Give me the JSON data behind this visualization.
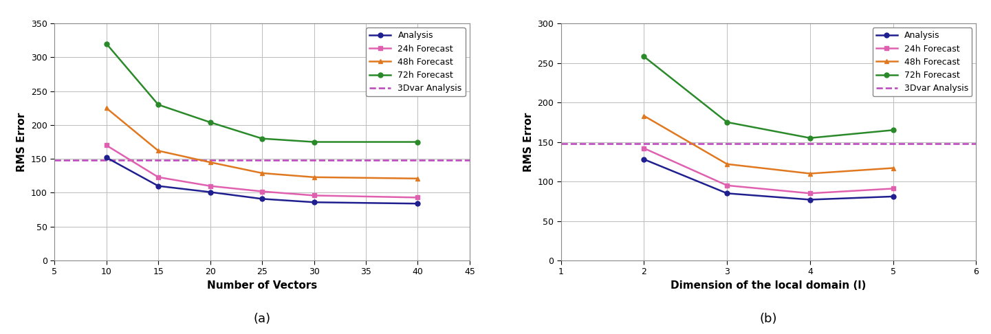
{
  "plot_a": {
    "x": [
      10,
      15,
      20,
      25,
      30,
      40
    ],
    "analysis": [
      152,
      110,
      101,
      91,
      86,
      84
    ],
    "forecast_24h": [
      170,
      123,
      110,
      102,
      96,
      93
    ],
    "forecast_48h": [
      225,
      162,
      145,
      129,
      123,
      121
    ],
    "forecast_72h": [
      320,
      230,
      204,
      180,
      175,
      175
    ],
    "dvar_line": 148,
    "xlim": [
      5,
      45
    ],
    "ylim": [
      0,
      350
    ],
    "xticks": [
      5,
      10,
      15,
      20,
      25,
      30,
      35,
      40,
      45
    ],
    "yticks": [
      0,
      50,
      100,
      150,
      200,
      250,
      300,
      350
    ],
    "xlabel": "Number of Vectors",
    "ylabel": "RMS Error",
    "label_a": "(a)"
  },
  "plot_b": {
    "x": [
      2,
      3,
      4,
      5
    ],
    "analysis": [
      128,
      85,
      77,
      81
    ],
    "forecast_24h": [
      142,
      95,
      85,
      91
    ],
    "forecast_48h": [
      183,
      122,
      110,
      117
    ],
    "forecast_72h": [
      258,
      175,
      155,
      165
    ],
    "dvar_line": 148,
    "xlim": [
      1,
      6
    ],
    "ylim": [
      0,
      300
    ],
    "xticks": [
      1,
      2,
      3,
      4,
      5,
      6
    ],
    "yticks": [
      0,
      50,
      100,
      150,
      200,
      250,
      300
    ],
    "xlabel": "Dimension of the local domain (l)",
    "ylabel": "RMS Error",
    "label_b": "(b)"
  },
  "colors": {
    "analysis": "#1F1F8F",
    "forecast_24h": "#E060B0",
    "forecast_48h": "#E07820",
    "forecast_72h": "#2A8A2A",
    "dvar": "#BB44BB"
  },
  "legend_labels": [
    "Analysis",
    "24h Forecast",
    "48h Forecast",
    "72h Forecast",
    "3Dvar Analysis"
  ],
  "background_color": "#FFFFFF",
  "grid_color": "#BBBBBB",
  "fig_facecolor": "#FFFFFF"
}
